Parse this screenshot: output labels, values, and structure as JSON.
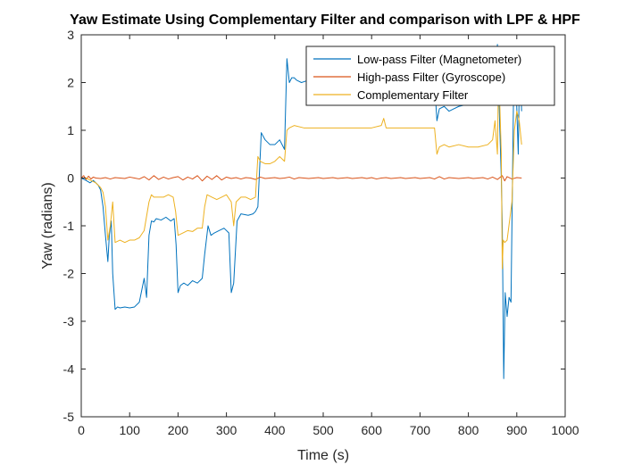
{
  "chart_data": {
    "type": "line",
    "title": "Yaw Estimate Using Complementary Filter and comparison with LPF & HPF",
    "xlabel": "Time (s)",
    "ylabel": "Yaw (radians)",
    "xlim": [
      0,
      1000
    ],
    "ylim": [
      -5,
      3
    ],
    "xticks": [
      0,
      100,
      200,
      300,
      400,
      500,
      600,
      700,
      800,
      900,
      1000
    ],
    "yticks": [
      -5,
      -4,
      -3,
      -2,
      -1,
      0,
      1,
      2,
      3
    ],
    "grid": false,
    "legend_position": "top-right",
    "series": [
      {
        "name": "Low-pass Filter (Magnetometer)",
        "color": "#0072BD",
        "x": [
          0,
          10,
          18,
          25,
          30,
          35,
          40,
          45,
          50,
          55,
          58,
          62,
          65,
          70,
          75,
          80,
          90,
          100,
          110,
          120,
          130,
          135,
          140,
          145,
          150,
          155,
          165,
          175,
          185,
          192,
          196,
          200,
          205,
          212,
          220,
          230,
          240,
          250,
          255,
          262,
          268,
          275,
          285,
          295,
          305,
          310,
          315,
          322,
          330,
          345,
          355,
          360,
          365,
          372,
          380,
          390,
          400,
          410,
          420,
          425,
          430,
          435,
          440,
          445,
          455,
          470,
          500,
          550,
          600,
          650,
          700,
          730,
          735,
          740,
          750,
          760,
          780,
          800,
          820,
          840,
          855,
          860,
          865,
          868,
          870,
          873,
          876,
          880,
          884,
          888,
          893,
          898,
          903,
          906,
          910
        ],
        "y": [
          0.0,
          -0.05,
          -0.1,
          -0.05,
          -0.1,
          -0.15,
          -0.25,
          -0.6,
          -1.2,
          -1.75,
          -1.2,
          -0.9,
          -2.0,
          -2.75,
          -2.7,
          -2.72,
          -2.7,
          -2.72,
          -2.7,
          -2.6,
          -2.1,
          -2.5,
          -1.2,
          -0.9,
          -0.92,
          -0.85,
          -0.88,
          -0.82,
          -0.9,
          -0.85,
          -1.4,
          -2.4,
          -2.25,
          -2.2,
          -2.25,
          -2.15,
          -2.2,
          -2.1,
          -1.6,
          -1.0,
          -1.2,
          -1.15,
          -1.1,
          -1.05,
          -1.15,
          -2.4,
          -2.2,
          -0.9,
          -0.75,
          -0.78,
          -0.75,
          -0.7,
          -0.6,
          0.95,
          0.8,
          0.7,
          0.7,
          0.8,
          0.6,
          2.5,
          2.0,
          2.1,
          2.1,
          2.05,
          2.0,
          2.05,
          2.05,
          2.05,
          2.05,
          2.0,
          2.05,
          2.0,
          1.2,
          1.45,
          1.5,
          1.4,
          1.5,
          1.55,
          1.65,
          1.8,
          2.2,
          2.8,
          1.0,
          0.0,
          -1.0,
          -4.2,
          -2.4,
          -2.9,
          -2.5,
          -2.6,
          1.5,
          2.1,
          0.5,
          2.5,
          1.4
        ]
      },
      {
        "name": "High-pass Filter (Gyroscope)",
        "color": "#D95319",
        "x": [
          0,
          5,
          10,
          15,
          20,
          25,
          30,
          40,
          50,
          60,
          70,
          80,
          90,
          100,
          110,
          120,
          130,
          140,
          150,
          160,
          170,
          180,
          190,
          200,
          210,
          220,
          230,
          240,
          250,
          260,
          270,
          280,
          290,
          300,
          310,
          320,
          330,
          340,
          350,
          360,
          370,
          380,
          390,
          400,
          410,
          420,
          430,
          440,
          450,
          460,
          470,
          480,
          490,
          500,
          510,
          520,
          530,
          540,
          550,
          560,
          570,
          580,
          590,
          600,
          610,
          620,
          630,
          640,
          650,
          660,
          670,
          680,
          690,
          700,
          710,
          720,
          730,
          740,
          750,
          760,
          770,
          780,
          790,
          800,
          810,
          820,
          830,
          840,
          850,
          860,
          870,
          875,
          880,
          890,
          900,
          910
        ],
        "y": [
          0.0,
          0.05,
          -0.03,
          0.04,
          -0.02,
          0.02,
          0.0,
          -0.01,
          0.01,
          -0.02,
          0.01,
          0.0,
          -0.01,
          0.02,
          0.0,
          -0.02,
          0.03,
          -0.04,
          0.05,
          -0.03,
          0.02,
          -0.02,
          0.01,
          0.03,
          -0.04,
          0.02,
          -0.02,
          0.05,
          -0.06,
          0.04,
          -0.03,
          0.05,
          -0.04,
          0.02,
          -0.01,
          0.01,
          -0.02,
          0.01,
          0.0,
          -0.03,
          0.02,
          -0.01,
          0.0,
          0.01,
          -0.01,
          0.0,
          0.02,
          -0.02,
          0.01,
          0.0,
          -0.01,
          0.0,
          0.01,
          -0.01,
          0.0,
          0.01,
          -0.01,
          0.0,
          0.01,
          -0.01,
          0.0,
          0.01,
          -0.01,
          0.01,
          -0.02,
          0.0,
          0.01,
          -0.01,
          0.0,
          0.01,
          -0.01,
          0.0,
          0.01,
          -0.01,
          0.0,
          0.01,
          -0.02,
          0.03,
          -0.02,
          0.01,
          0.0,
          -0.01,
          0.0,
          0.01,
          -0.01,
          0.0,
          0.01,
          -0.02,
          0.02,
          -0.03,
          0.05,
          -0.06,
          0.03,
          -0.02,
          0.01,
          0.0
        ]
      },
      {
        "name": "Complementary Filter",
        "color": "#EDB120",
        "x": [
          0,
          10,
          20,
          30,
          40,
          45,
          50,
          55,
          60,
          65,
          70,
          80,
          90,
          100,
          110,
          120,
          130,
          140,
          145,
          150,
          160,
          170,
          180,
          190,
          195,
          200,
          210,
          220,
          230,
          240,
          250,
          255,
          260,
          270,
          280,
          290,
          300,
          310,
          315,
          320,
          330,
          340,
          350,
          360,
          365,
          370,
          380,
          390,
          400,
          410,
          420,
          425,
          430,
          440,
          460,
          500,
          550,
          600,
          620,
          625,
          630,
          650,
          700,
          730,
          735,
          740,
          750,
          760,
          780,
          800,
          820,
          840,
          850,
          855,
          860,
          862,
          865,
          868,
          870,
          872,
          875,
          880,
          885,
          890,
          895,
          900,
          905,
          910
        ],
        "y": [
          0.0,
          0.0,
          -0.05,
          -0.1,
          -0.2,
          -0.3,
          -0.6,
          -1.3,
          -1.0,
          -0.5,
          -1.35,
          -1.3,
          -1.35,
          -1.3,
          -1.3,
          -1.25,
          -1.1,
          -0.5,
          -0.35,
          -0.4,
          -0.4,
          -0.4,
          -0.35,
          -0.4,
          -0.7,
          -1.2,
          -1.15,
          -1.1,
          -1.12,
          -1.05,
          -1.05,
          -0.6,
          -0.35,
          -0.4,
          -0.45,
          -0.4,
          -0.35,
          -0.5,
          -1.0,
          -0.5,
          -0.4,
          -0.4,
          -0.45,
          -0.4,
          0.45,
          0.35,
          0.3,
          0.3,
          0.35,
          0.45,
          0.35,
          1.0,
          1.05,
          1.1,
          1.05,
          1.05,
          1.05,
          1.05,
          1.1,
          1.25,
          1.05,
          1.05,
          1.05,
          1.05,
          0.5,
          0.65,
          0.7,
          0.65,
          0.7,
          0.65,
          0.65,
          0.7,
          0.8,
          1.2,
          0.5,
          2.0,
          1.5,
          0.5,
          -1.9,
          -1.3,
          -1.35,
          -1.3,
          -0.9,
          -0.5,
          1.0,
          1.4,
          1.2,
          0.7
        ]
      }
    ]
  }
}
